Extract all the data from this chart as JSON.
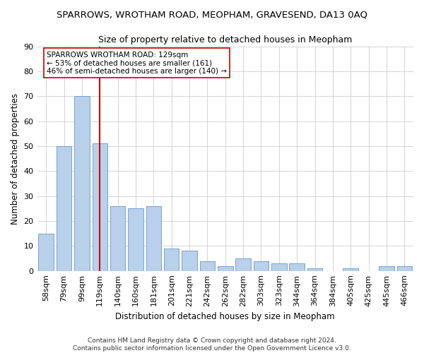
{
  "title": "SPARROWS, WROTHAM ROAD, MEOPHAM, GRAVESEND, DA13 0AQ",
  "subtitle": "Size of property relative to detached houses in Meopham",
  "xlabel": "Distribution of detached houses by size in Meopham",
  "ylabel": "Number of detached properties",
  "categories": [
    "58sqm",
    "79sqm",
    "99sqm",
    "119sqm",
    "140sqm",
    "160sqm",
    "181sqm",
    "201sqm",
    "221sqm",
    "242sqm",
    "262sqm",
    "282sqm",
    "303sqm",
    "323sqm",
    "344sqm",
    "364sqm",
    "384sqm",
    "405sqm",
    "425sqm",
    "445sqm",
    "466sqm"
  ],
  "values": [
    15,
    50,
    70,
    51,
    26,
    25,
    26,
    9,
    8,
    4,
    2,
    5,
    4,
    3,
    3,
    1,
    0,
    1,
    0,
    2,
    2
  ],
  "bar_color": "#b8d0ea",
  "bar_edge_color": "#6699cc",
  "vline_x_index": 3,
  "vline_color": "#cc0000",
  "annotation_text": "SPARROWS WROTHAM ROAD: 129sqm\n← 53% of detached houses are smaller (161)\n46% of semi-detached houses are larger (140) →",
  "annotation_box_color": "#ffffff",
  "annotation_box_edge_color": "#cc0000",
  "ylim": [
    0,
    90
  ],
  "yticks": [
    0,
    10,
    20,
    30,
    40,
    50,
    60,
    70,
    80,
    90
  ],
  "footer_line1": "Contains HM Land Registry data © Crown copyright and database right 2024.",
  "footer_line2": "Contains public sector information licensed under the Open Government Licence v3.0.",
  "background_color": "#ffffff",
  "grid_color": "#cccccc",
  "title_fontsize": 9.5,
  "subtitle_fontsize": 9,
  "ylabel_fontsize": 8.5,
  "xlabel_fontsize": 8.5,
  "tick_fontsize": 8,
  "annotation_fontsize": 7.5,
  "footer_fontsize": 6.5
}
